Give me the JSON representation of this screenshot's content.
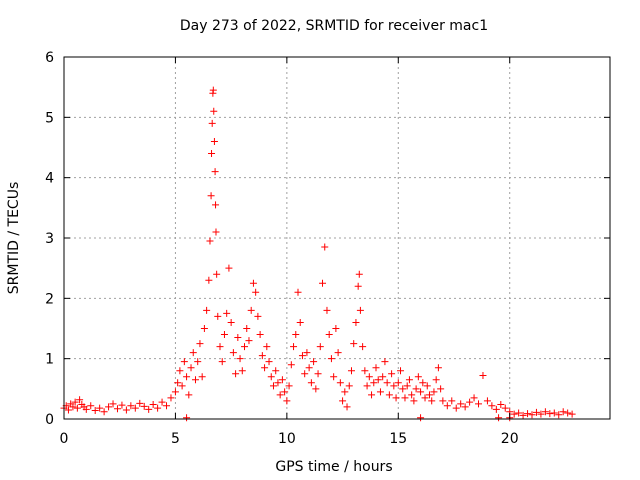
{
  "chart_data": {
    "type": "scatter",
    "title": "Day 273 of 2022, SRMTID for receiver mac1",
    "xlabel": "GPS time / hours",
    "ylabel": "SRMTID / TECUs",
    "xlim": [
      0,
      24.5
    ],
    "ylim": [
      0,
      6
    ],
    "xticks": [
      0,
      5,
      10,
      15,
      20
    ],
    "yticks": [
      0,
      1,
      2,
      3,
      4,
      5,
      6
    ],
    "xtick_labels": [
      "0",
      "5",
      "10",
      "15",
      "20"
    ],
    "ytick_labels": [
      "0",
      "1",
      "2",
      "3",
      "4",
      "5",
      "6"
    ],
    "grid": true,
    "legend": "none",
    "marker": "+",
    "color": "#ff0000",
    "series": [
      {
        "points": [
          [
            0.0,
            0.18
          ],
          [
            0.1,
            0.22
          ],
          [
            0.2,
            0.15
          ],
          [
            0.3,
            0.25
          ],
          [
            0.4,
            0.2
          ],
          [
            0.5,
            0.28
          ],
          [
            0.6,
            0.18
          ],
          [
            0.7,
            0.32
          ],
          [
            0.8,
            0.24
          ],
          [
            0.9,
            0.2
          ],
          [
            1.0,
            0.16
          ],
          [
            1.2,
            0.22
          ],
          [
            1.4,
            0.14
          ],
          [
            1.6,
            0.18
          ],
          [
            1.8,
            0.12
          ],
          [
            2.0,
            0.2
          ],
          [
            2.2,
            0.25
          ],
          [
            2.4,
            0.17
          ],
          [
            2.6,
            0.23
          ],
          [
            2.8,
            0.15
          ],
          [
            3.0,
            0.22
          ],
          [
            3.2,
            0.18
          ],
          [
            3.4,
            0.26
          ],
          [
            3.6,
            0.21
          ],
          [
            3.8,
            0.16
          ],
          [
            4.0,
            0.24
          ],
          [
            4.2,
            0.18
          ],
          [
            4.4,
            0.28
          ],
          [
            4.6,
            0.22
          ],
          [
            4.8,
            0.35
          ],
          [
            5.0,
            0.45
          ],
          [
            5.1,
            0.6
          ],
          [
            5.2,
            0.8
          ],
          [
            5.3,
            0.55
          ],
          [
            5.4,
            0.95
          ],
          [
            5.5,
            0.7
          ],
          [
            5.6,
            0.4
          ],
          [
            5.7,
            0.85
          ],
          [
            5.8,
            1.1
          ],
          [
            5.9,
            0.65
          ],
          [
            6.0,
            0.95
          ],
          [
            6.1,
            1.25
          ],
          [
            6.2,
            0.7
          ],
          [
            6.3,
            1.5
          ],
          [
            6.4,
            1.8
          ],
          [
            6.5,
            2.3
          ],
          [
            6.55,
            2.95
          ],
          [
            6.6,
            3.7
          ],
          [
            6.62,
            4.4
          ],
          [
            6.65,
            4.9
          ],
          [
            6.68,
            5.4
          ],
          [
            6.7,
            5.45
          ],
          [
            6.72,
            5.1
          ],
          [
            6.75,
            4.6
          ],
          [
            6.78,
            4.1
          ],
          [
            6.8,
            3.55
          ],
          [
            6.82,
            3.1
          ],
          [
            6.85,
            2.4
          ],
          [
            6.9,
            1.7
          ],
          [
            7.0,
            1.2
          ],
          [
            7.1,
            0.95
          ],
          [
            7.2,
            1.4
          ],
          [
            7.3,
            1.75
          ],
          [
            7.4,
            2.5
          ],
          [
            7.5,
            1.6
          ],
          [
            7.6,
            1.1
          ],
          [
            7.7,
            0.75
          ],
          [
            7.8,
            1.35
          ],
          [
            7.9,
            1.0
          ],
          [
            8.0,
            0.8
          ],
          [
            8.1,
            1.2
          ],
          [
            8.2,
            1.5
          ],
          [
            8.3,
            1.3
          ],
          [
            8.4,
            1.8
          ],
          [
            8.5,
            2.25
          ],
          [
            8.6,
            2.1
          ],
          [
            8.7,
            1.7
          ],
          [
            8.8,
            1.4
          ],
          [
            8.9,
            1.05
          ],
          [
            9.0,
            0.85
          ],
          [
            9.1,
            1.2
          ],
          [
            9.2,
            0.95
          ],
          [
            9.3,
            0.7
          ],
          [
            9.4,
            0.55
          ],
          [
            9.5,
            0.8
          ],
          [
            9.6,
            0.6
          ],
          [
            9.7,
            0.4
          ],
          [
            9.8,
            0.65
          ],
          [
            9.9,
            0.45
          ],
          [
            10.0,
            0.3
          ],
          [
            10.1,
            0.55
          ],
          [
            10.2,
            0.9
          ],
          [
            10.3,
            1.2
          ],
          [
            10.4,
            1.4
          ],
          [
            10.5,
            2.1
          ],
          [
            10.6,
            1.6
          ],
          [
            10.7,
            1.05
          ],
          [
            10.8,
            0.75
          ],
          [
            10.9,
            1.1
          ],
          [
            11.0,
            0.85
          ],
          [
            11.1,
            0.6
          ],
          [
            11.2,
            0.95
          ],
          [
            11.3,
            0.5
          ],
          [
            11.4,
            0.75
          ],
          [
            11.5,
            1.2
          ],
          [
            11.6,
            2.25
          ],
          [
            11.7,
            2.85
          ],
          [
            11.8,
            1.8
          ],
          [
            11.9,
            1.4
          ],
          [
            12.0,
            1.0
          ],
          [
            12.1,
            0.7
          ],
          [
            12.2,
            1.5
          ],
          [
            12.3,
            1.1
          ],
          [
            12.4,
            0.6
          ],
          [
            12.5,
            0.3
          ],
          [
            12.6,
            0.45
          ],
          [
            12.7,
            0.2
          ],
          [
            12.8,
            0.55
          ],
          [
            12.9,
            0.8
          ],
          [
            13.0,
            1.25
          ],
          [
            13.1,
            1.6
          ],
          [
            13.2,
            2.2
          ],
          [
            13.25,
            2.4
          ],
          [
            13.3,
            1.8
          ],
          [
            13.4,
            1.2
          ],
          [
            13.5,
            0.8
          ],
          [
            13.6,
            0.55
          ],
          [
            13.7,
            0.7
          ],
          [
            13.8,
            0.4
          ],
          [
            13.9,
            0.6
          ],
          [
            14.0,
            0.85
          ],
          [
            14.1,
            0.65
          ],
          [
            14.2,
            0.45
          ],
          [
            14.3,
            0.7
          ],
          [
            14.4,
            0.95
          ],
          [
            14.5,
            0.6
          ],
          [
            14.6,
            0.4
          ],
          [
            14.7,
            0.75
          ],
          [
            14.8,
            0.55
          ],
          [
            14.9,
            0.35
          ],
          [
            15.0,
            0.6
          ],
          [
            15.1,
            0.8
          ],
          [
            15.2,
            0.5
          ],
          [
            15.3,
            0.35
          ],
          [
            15.4,
            0.55
          ],
          [
            15.5,
            0.65
          ],
          [
            15.6,
            0.4
          ],
          [
            15.7,
            0.3
          ],
          [
            15.8,
            0.5
          ],
          [
            15.9,
            0.7
          ],
          [
            16.0,
            0.45
          ],
          [
            16.1,
            0.6
          ],
          [
            16.2,
            0.35
          ],
          [
            16.3,
            0.55
          ],
          [
            16.4,
            0.4
          ],
          [
            16.5,
            0.3
          ],
          [
            16.6,
            0.45
          ],
          [
            16.7,
            0.65
          ],
          [
            16.8,
            0.85
          ],
          [
            16.9,
            0.5
          ],
          [
            17.0,
            0.3
          ],
          [
            17.2,
            0.22
          ],
          [
            17.4,
            0.3
          ],
          [
            17.6,
            0.18
          ],
          [
            17.8,
            0.25
          ],
          [
            18.0,
            0.2
          ],
          [
            18.2,
            0.28
          ],
          [
            18.4,
            0.35
          ],
          [
            18.6,
            0.25
          ],
          [
            18.8,
            0.72
          ],
          [
            19.0,
            0.3
          ],
          [
            19.2,
            0.22
          ],
          [
            19.4,
            0.16
          ],
          [
            19.6,
            0.24
          ],
          [
            19.8,
            0.18
          ],
          [
            20.0,
            0.12
          ],
          [
            20.2,
            0.08
          ],
          [
            20.4,
            0.1
          ],
          [
            20.6,
            0.06
          ],
          [
            20.8,
            0.09
          ],
          [
            21.0,
            0.07
          ],
          [
            21.2,
            0.11
          ],
          [
            21.4,
            0.08
          ],
          [
            21.6,
            0.12
          ],
          [
            21.8,
            0.09
          ],
          [
            22.0,
            0.1
          ],
          [
            22.2,
            0.07
          ],
          [
            22.4,
            0.12
          ],
          [
            22.6,
            0.1
          ],
          [
            22.8,
            0.08
          ],
          [
            5.5,
            0.02
          ],
          [
            16.0,
            0.02
          ],
          [
            19.5,
            0.02
          ],
          [
            20.0,
            0.02
          ]
        ]
      }
    ]
  }
}
